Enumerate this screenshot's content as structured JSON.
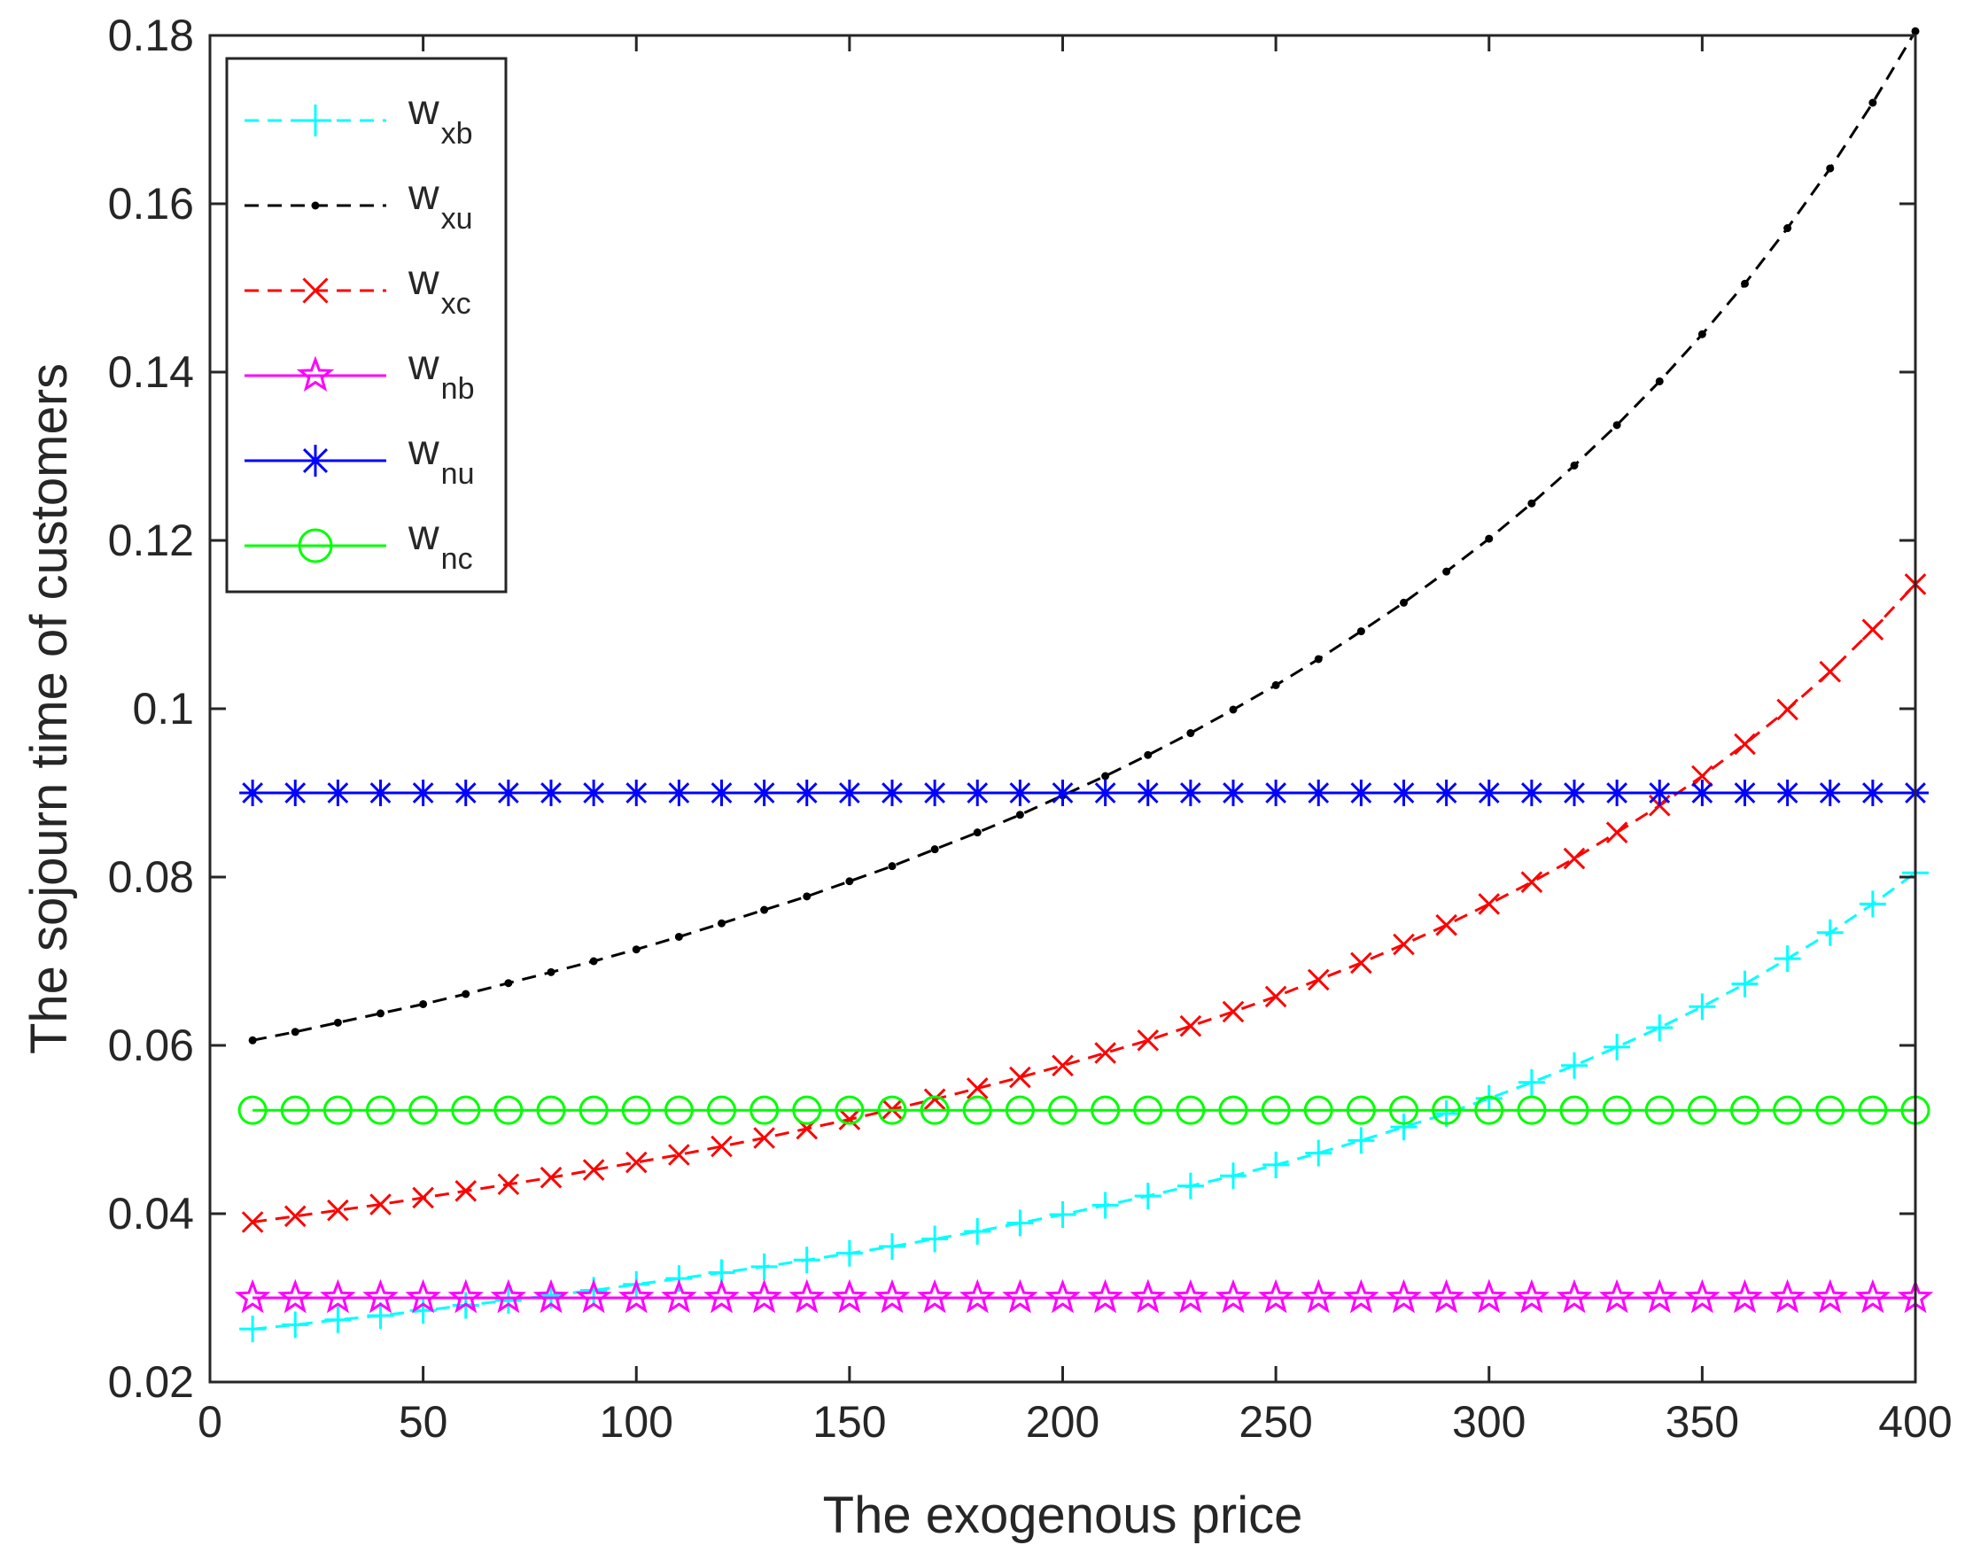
{
  "chart_data": {
    "type": "line",
    "title": "",
    "xlabel": "The exogenous price",
    "ylabel": "The sojourn time of customers",
    "xlim": [
      0,
      400
    ],
    "ylim": [
      0.02,
      0.18
    ],
    "xticks": [
      0,
      50,
      100,
      150,
      200,
      250,
      300,
      350,
      400
    ],
    "xtick_labels": [
      "0",
      "50",
      "100",
      "150",
      "200",
      "250",
      "300",
      "350",
      "400"
    ],
    "yticks": [
      0.02,
      0.04,
      0.06,
      0.08,
      0.1,
      0.12,
      0.14,
      0.16,
      0.18
    ],
    "ytick_labels": [
      "0.02",
      "0.04",
      "0.06",
      "0.08",
      "0.1",
      "0.12",
      "0.14",
      "0.16",
      "0.18"
    ],
    "grid": false,
    "legend_position": "top-left",
    "x": [
      10,
      20,
      30,
      40,
      50,
      60,
      70,
      80,
      90,
      100,
      110,
      120,
      130,
      140,
      150,
      160,
      170,
      180,
      190,
      200,
      210,
      220,
      230,
      240,
      250,
      260,
      270,
      280,
      290,
      300,
      310,
      320,
      330,
      340,
      350,
      360,
      370,
      380,
      390,
      400
    ],
    "series": [
      {
        "name": "w_xb",
        "legend_main": "w",
        "legend_sub": "xb",
        "color": "#00ffff",
        "line_style": "dashed",
        "marker": "plus",
        "values": [
          0.0263,
          0.0268,
          0.0274,
          0.0279,
          0.0285,
          0.0291,
          0.0297,
          0.0303,
          0.0309,
          0.0316,
          0.0323,
          0.033,
          0.0337,
          0.0345,
          0.0353,
          0.0361,
          0.037,
          0.0379,
          0.0389,
          0.0399,
          0.041,
          0.0421,
          0.0433,
          0.0445,
          0.0458,
          0.0472,
          0.0487,
          0.0503,
          0.0519,
          0.0537,
          0.0556,
          0.0576,
          0.0598,
          0.0621,
          0.0646,
          0.0673,
          0.0703,
          0.0734,
          0.0768,
          0.0805
        ]
      },
      {
        "name": "w_xu",
        "legend_main": "w",
        "legend_sub": "xu",
        "color": "#000000",
        "line_style": "dashed",
        "marker": "dot",
        "values": [
          0.0606,
          0.0616,
          0.0627,
          0.0638,
          0.0649,
          0.0661,
          0.0674,
          0.0687,
          0.07,
          0.0714,
          0.0729,
          0.0745,
          0.0761,
          0.0777,
          0.0795,
          0.0813,
          0.0833,
          0.0853,
          0.0874,
          0.0897,
          0.092,
          0.0945,
          0.0971,
          0.0999,
          0.1028,
          0.1059,
          0.1092,
          0.1126,
          0.1163,
          0.1202,
          0.1244,
          0.1289,
          0.1337,
          0.1389,
          0.1445,
          0.1505,
          0.1571,
          0.1642,
          0.172,
          0.1805
        ]
      },
      {
        "name": "w_xc",
        "legend_main": "w",
        "legend_sub": "xc",
        "color": "#ff0000",
        "line_style": "dashed",
        "marker": "x",
        "values": [
          0.039,
          0.0397,
          0.0404,
          0.0411,
          0.0419,
          0.0427,
          0.0435,
          0.0443,
          0.0452,
          0.0461,
          0.047,
          0.048,
          0.049,
          0.0501,
          0.0512,
          0.0524,
          0.0536,
          0.0549,
          0.0562,
          0.0576,
          0.0591,
          0.0606,
          0.0623,
          0.064,
          0.0658,
          0.0678,
          0.0698,
          0.072,
          0.0743,
          0.0768,
          0.0794,
          0.0822,
          0.0853,
          0.0885,
          0.092,
          0.0958,
          0.0999,
          0.1044,
          0.1094,
          0.1148
        ]
      },
      {
        "name": "w_nb",
        "legend_main": "w",
        "legend_sub": "nb",
        "color": "#ff00ff",
        "line_style": "solid",
        "marker": "star",
        "values": [
          0.03,
          0.03,
          0.03,
          0.03,
          0.03,
          0.03,
          0.03,
          0.03,
          0.03,
          0.03,
          0.03,
          0.03,
          0.03,
          0.03,
          0.03,
          0.03,
          0.03,
          0.03,
          0.03,
          0.03,
          0.03,
          0.03,
          0.03,
          0.03,
          0.03,
          0.03,
          0.03,
          0.03,
          0.03,
          0.03,
          0.03,
          0.03,
          0.03,
          0.03,
          0.03,
          0.03,
          0.03,
          0.03,
          0.03,
          0.03
        ]
      },
      {
        "name": "w_nu",
        "legend_main": "w",
        "legend_sub": "nu",
        "color": "#0000ff",
        "line_style": "solid",
        "marker": "asterisk",
        "values": [
          0.09,
          0.09,
          0.09,
          0.09,
          0.09,
          0.09,
          0.09,
          0.09,
          0.09,
          0.09,
          0.09,
          0.09,
          0.09,
          0.09,
          0.09,
          0.09,
          0.09,
          0.09,
          0.09,
          0.09,
          0.09,
          0.09,
          0.09,
          0.09,
          0.09,
          0.09,
          0.09,
          0.09,
          0.09,
          0.09,
          0.09,
          0.09,
          0.09,
          0.09,
          0.09,
          0.09,
          0.09,
          0.09,
          0.09,
          0.09
        ]
      },
      {
        "name": "w_nc",
        "legend_main": "w",
        "legend_sub": "nc",
        "color": "#00ff00",
        "line_style": "solid",
        "marker": "circle",
        "values": [
          0.0523,
          0.0523,
          0.0523,
          0.0523,
          0.0523,
          0.0523,
          0.0523,
          0.0523,
          0.0523,
          0.0523,
          0.0523,
          0.0523,
          0.0523,
          0.0523,
          0.0523,
          0.0523,
          0.0523,
          0.0523,
          0.0523,
          0.0523,
          0.0523,
          0.0523,
          0.0523,
          0.0523,
          0.0523,
          0.0523,
          0.0523,
          0.0523,
          0.0523,
          0.0523,
          0.0523,
          0.0523,
          0.0523,
          0.0523,
          0.0523,
          0.0523,
          0.0523,
          0.0523,
          0.0523,
          0.0523
        ]
      }
    ]
  }
}
